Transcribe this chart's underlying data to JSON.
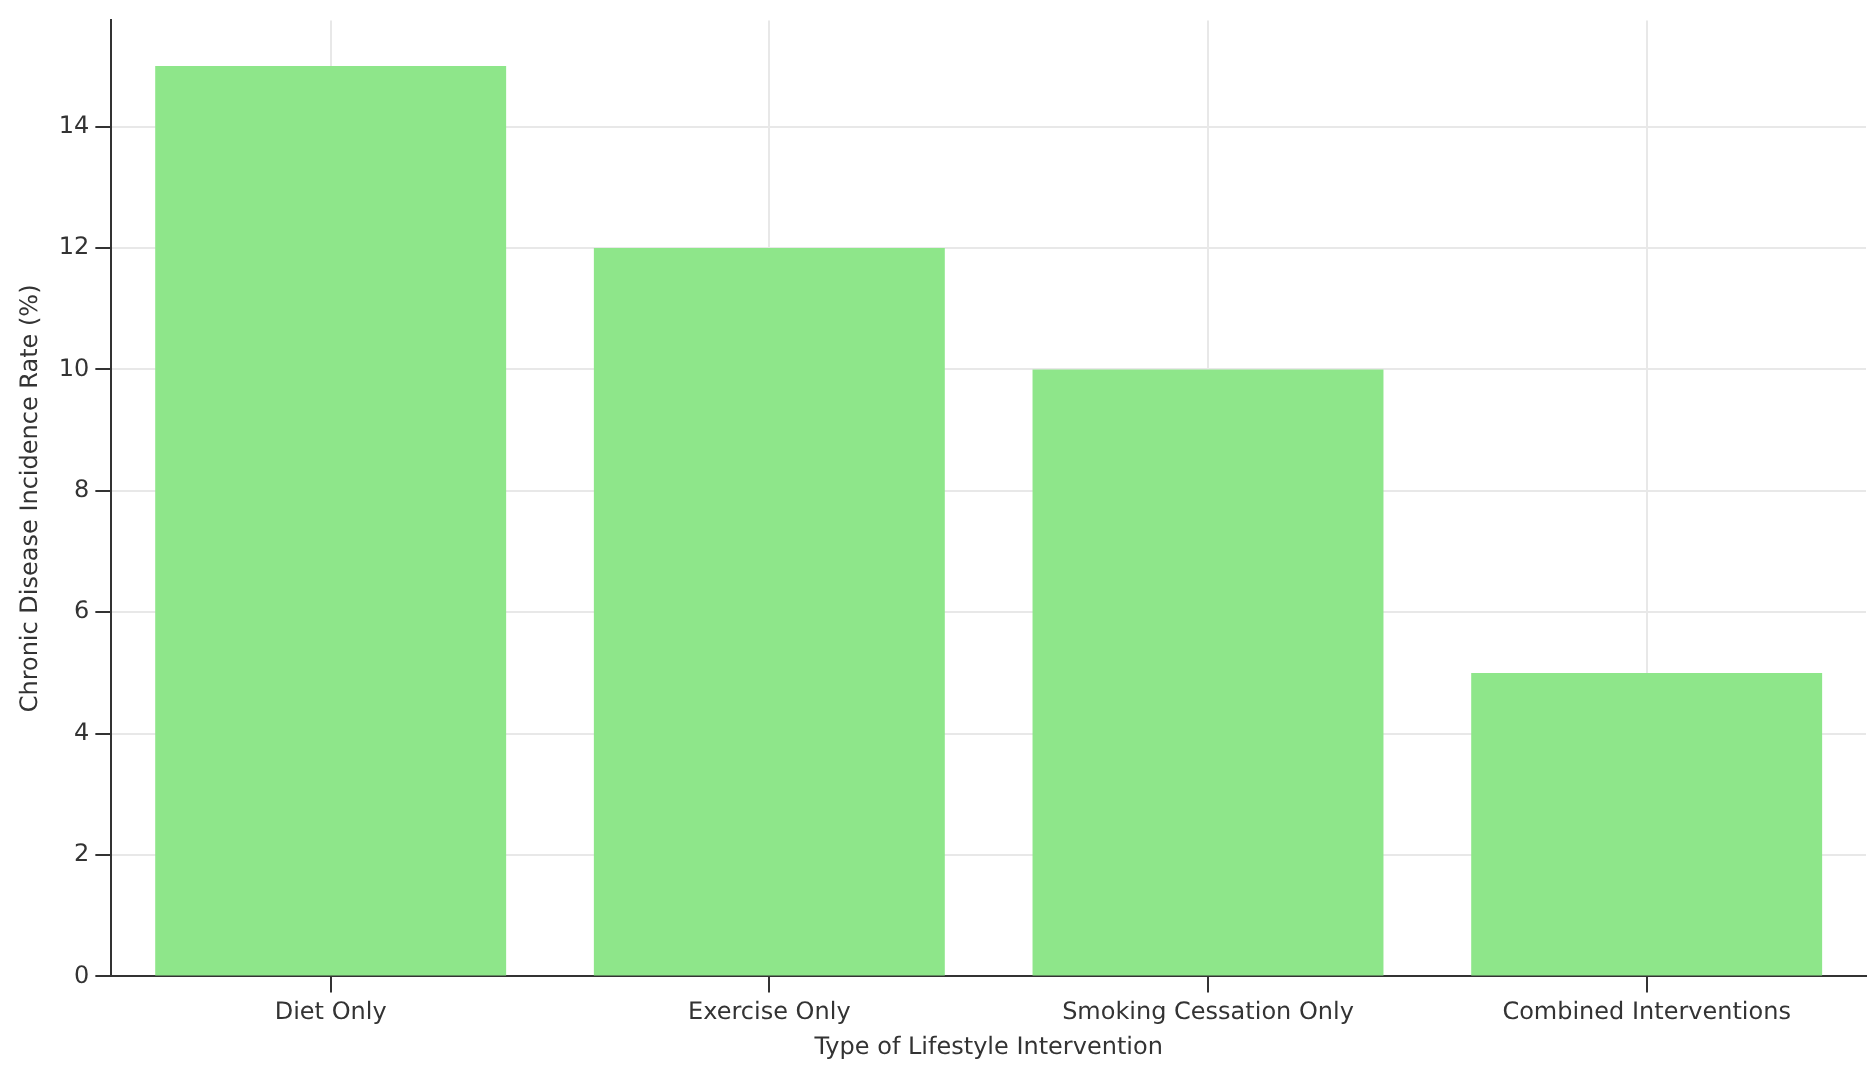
{
  "chart_data": {
    "type": "bar",
    "xlabel": "Type of Lifestyle Intervention",
    "ylabel": "Chronic Disease Incidence Rate (%)",
    "categories": [
      "Diet Only",
      "Exercise Only",
      "Smoking Cessation Only",
      "Combined Interventions"
    ],
    "values": [
      15,
      12,
      10,
      5
    ],
    "color": "#8ee68a",
    "ylim": [
      0,
      15.75
    ],
    "yticks": [
      0,
      2,
      4,
      6,
      8,
      10,
      12,
      14
    ],
    "grid": true
  }
}
